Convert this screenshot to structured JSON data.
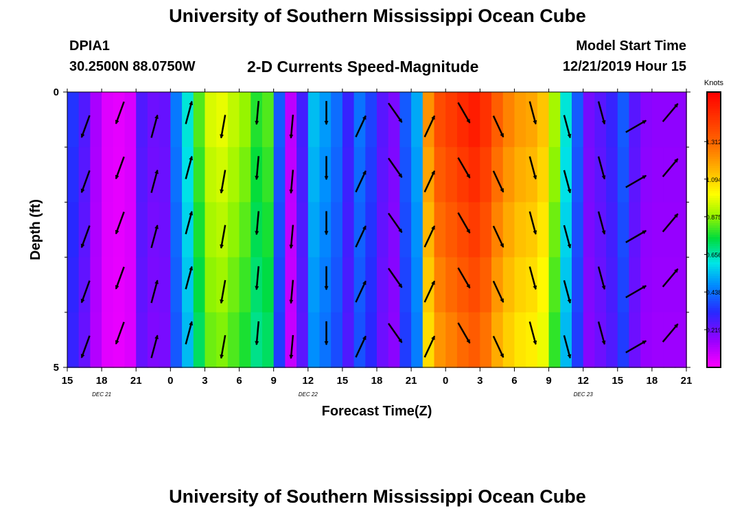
{
  "header": {
    "title": "University of Southern Mississippi Ocean Cube",
    "station_id": "DPIA1",
    "station_coords": "30.2500N 88.0750W",
    "plot_title": "2-D Currents Speed-Magnitude",
    "model_start_label": "Model Start Time",
    "model_start_value": "12/21/2019 Hour 15"
  },
  "footer": {
    "title": "University of Southern Mississippi Ocean Cube"
  },
  "chart_data": {
    "type": "heatmap",
    "title": "2-D Currents Speed-Magnitude",
    "xlabel": "Forecast Time(Z)",
    "ylabel": "Depth (ft)",
    "x_ticks": [
      "15",
      "18",
      "21",
      "0",
      "3",
      "6",
      "9",
      "12",
      "15",
      "18",
      "21",
      "0",
      "3",
      "6",
      "9",
      "12",
      "15",
      "18",
      "21"
    ],
    "x_range_hours": [
      0,
      54
    ],
    "y_range": [
      0,
      5
    ],
    "y_tick_labels": [
      {
        "value": 0,
        "label": "0"
      },
      {
        "value": 5,
        "label": "5"
      }
    ],
    "y_minor_ticks": [
      1,
      2,
      3,
      4
    ],
    "date_labels": [
      {
        "hour": 3,
        "label": "DEC 21"
      },
      {
        "hour": 21,
        "label": "DEC 22"
      },
      {
        "hour": 45,
        "label": "DEC 23"
      }
    ],
    "colorbar": {
      "label": "Knots",
      "min": 0.0,
      "max": 1.6,
      "ticks": [
        0.219,
        0.438,
        0.656,
        0.875,
        1.094,
        1.312
      ],
      "tick_labels": [
        "0.219",
        "0.438",
        "0.656",
        "0.875",
        "1.094",
        "1.312"
      ]
    },
    "speed_knots_by_hour": [
      0.34,
      0.26,
      0.13,
      0.05,
      0.04,
      0.06,
      0.26,
      0.22,
      0.23,
      0.45,
      0.62,
      0.82,
      0.96,
      0.98,
      0.93,
      0.88,
      0.78,
      0.82,
      0.4,
      0.1,
      0.28,
      0.55,
      0.5,
      0.43,
      0.3,
      0.44,
      0.36,
      0.25,
      0.2,
      0.4,
      0.52,
      1.22,
      1.38,
      1.43,
      1.48,
      1.52,
      1.46,
      1.33,
      1.25,
      1.2,
      1.18,
      1.12,
      0.9,
      0.62,
      0.4,
      0.21,
      0.25,
      0.3,
      0.4,
      0.25,
      0.18,
      0.17,
      0.17,
      0.17
    ],
    "depth_levels_ft": [
      0.5,
      1.5,
      2.5,
      3.5,
      4.5
    ],
    "current_direction_deg_by_3h": [
      200,
      200,
      15,
      15,
      190,
      185,
      185,
      180,
      25,
      145,
      25,
      150,
      155,
      165,
      165,
      165,
      60,
      40
    ]
  }
}
